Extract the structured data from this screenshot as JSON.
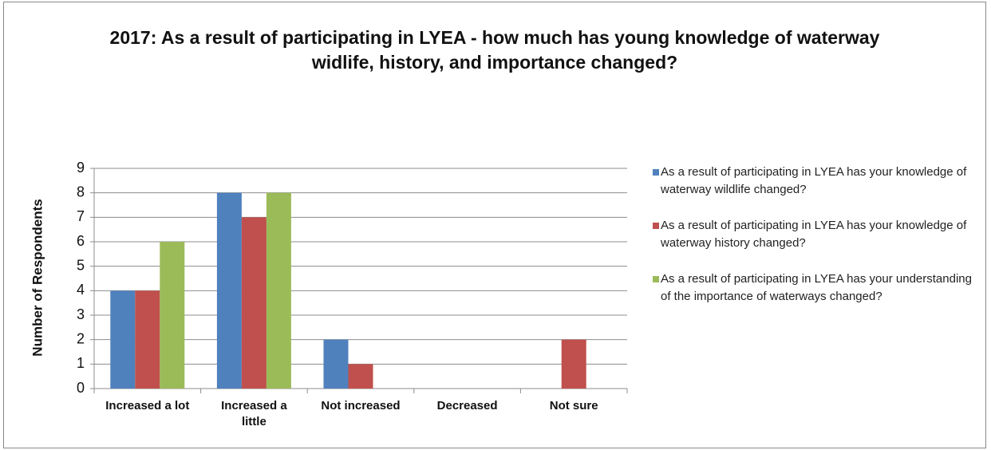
{
  "chart_data": {
    "type": "bar",
    "title": "2017: As a result of participating in LYEA - how much has young knowledge of waterway widlife, history, and importance changed?",
    "y_label": "Number of Respondents",
    "categories": [
      "Increased a lot",
      "Increased a little",
      "Not increased",
      "Decreased",
      "Not sure"
    ],
    "series": [
      {
        "name": "As a result of participating in LYEA has your knowledge of waterway wildlife changed?",
        "color": "#4f81bd",
        "values": [
          4,
          8,
          2,
          0,
          0
        ]
      },
      {
        "name": "As a result of participating in LYEA has your knowledge of waterway history changed?",
        "color": "#c0504d",
        "values": [
          4,
          7,
          1,
          0,
          2
        ]
      },
      {
        "name": "As a result of participating in LYEA has your understanding of the importance of waterways changed?",
        "color": "#9bbb59",
        "values": [
          6,
          8,
          0,
          0,
          0
        ]
      }
    ],
    "ylim": [
      0,
      9
    ],
    "yticks": [
      0,
      1,
      2,
      3,
      4,
      5,
      6,
      7,
      8,
      9
    ],
    "grid": true,
    "legend": "right"
  }
}
